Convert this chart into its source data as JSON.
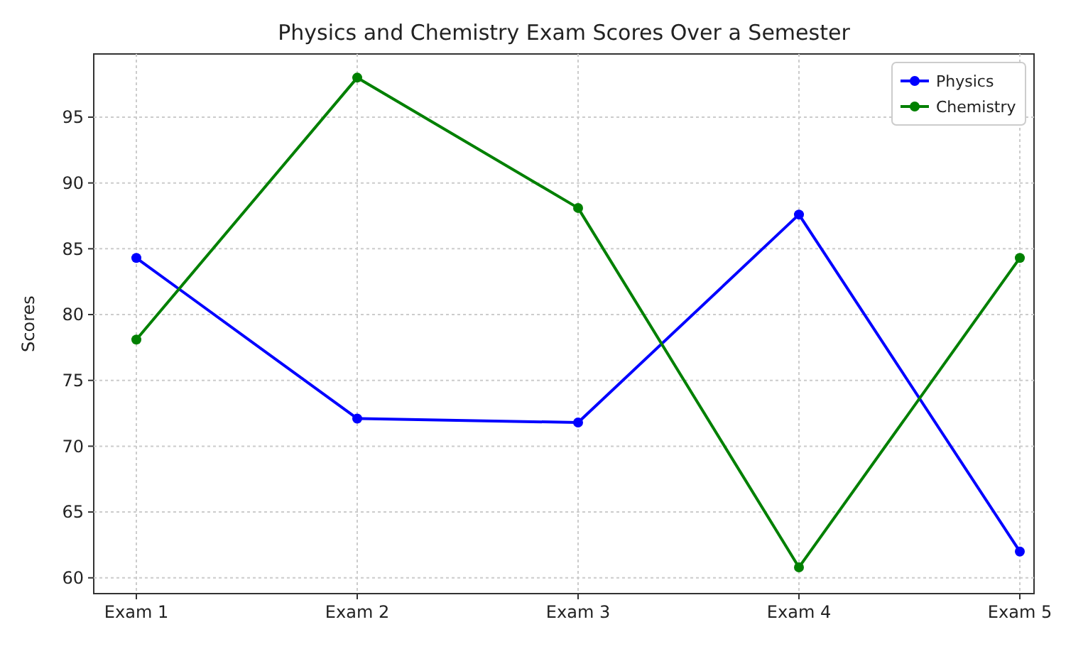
{
  "chart_data": {
    "type": "line",
    "title": "Physics and Chemistry Exam Scores Over a Semester",
    "ylabel": "Scores",
    "categories": [
      "Exam 1",
      "Exam 2",
      "Exam 3",
      "Exam 4",
      "Exam 5"
    ],
    "series": [
      {
        "name": "Physics",
        "color": "#0000ff",
        "values": [
          84.3,
          72.1,
          71.8,
          87.6,
          62.0
        ]
      },
      {
        "name": "Chemistry",
        "color": "#008000",
        "values": [
          78.1,
          98.0,
          88.1,
          60.8,
          84.3
        ]
      }
    ],
    "ylim": [
      58.8,
      99.8
    ],
    "yticks": [
      60,
      65,
      70,
      75,
      80,
      85,
      90,
      95
    ],
    "grid": true,
    "legend": "top right",
    "marker": "circle",
    "line_style": "solid"
  }
}
